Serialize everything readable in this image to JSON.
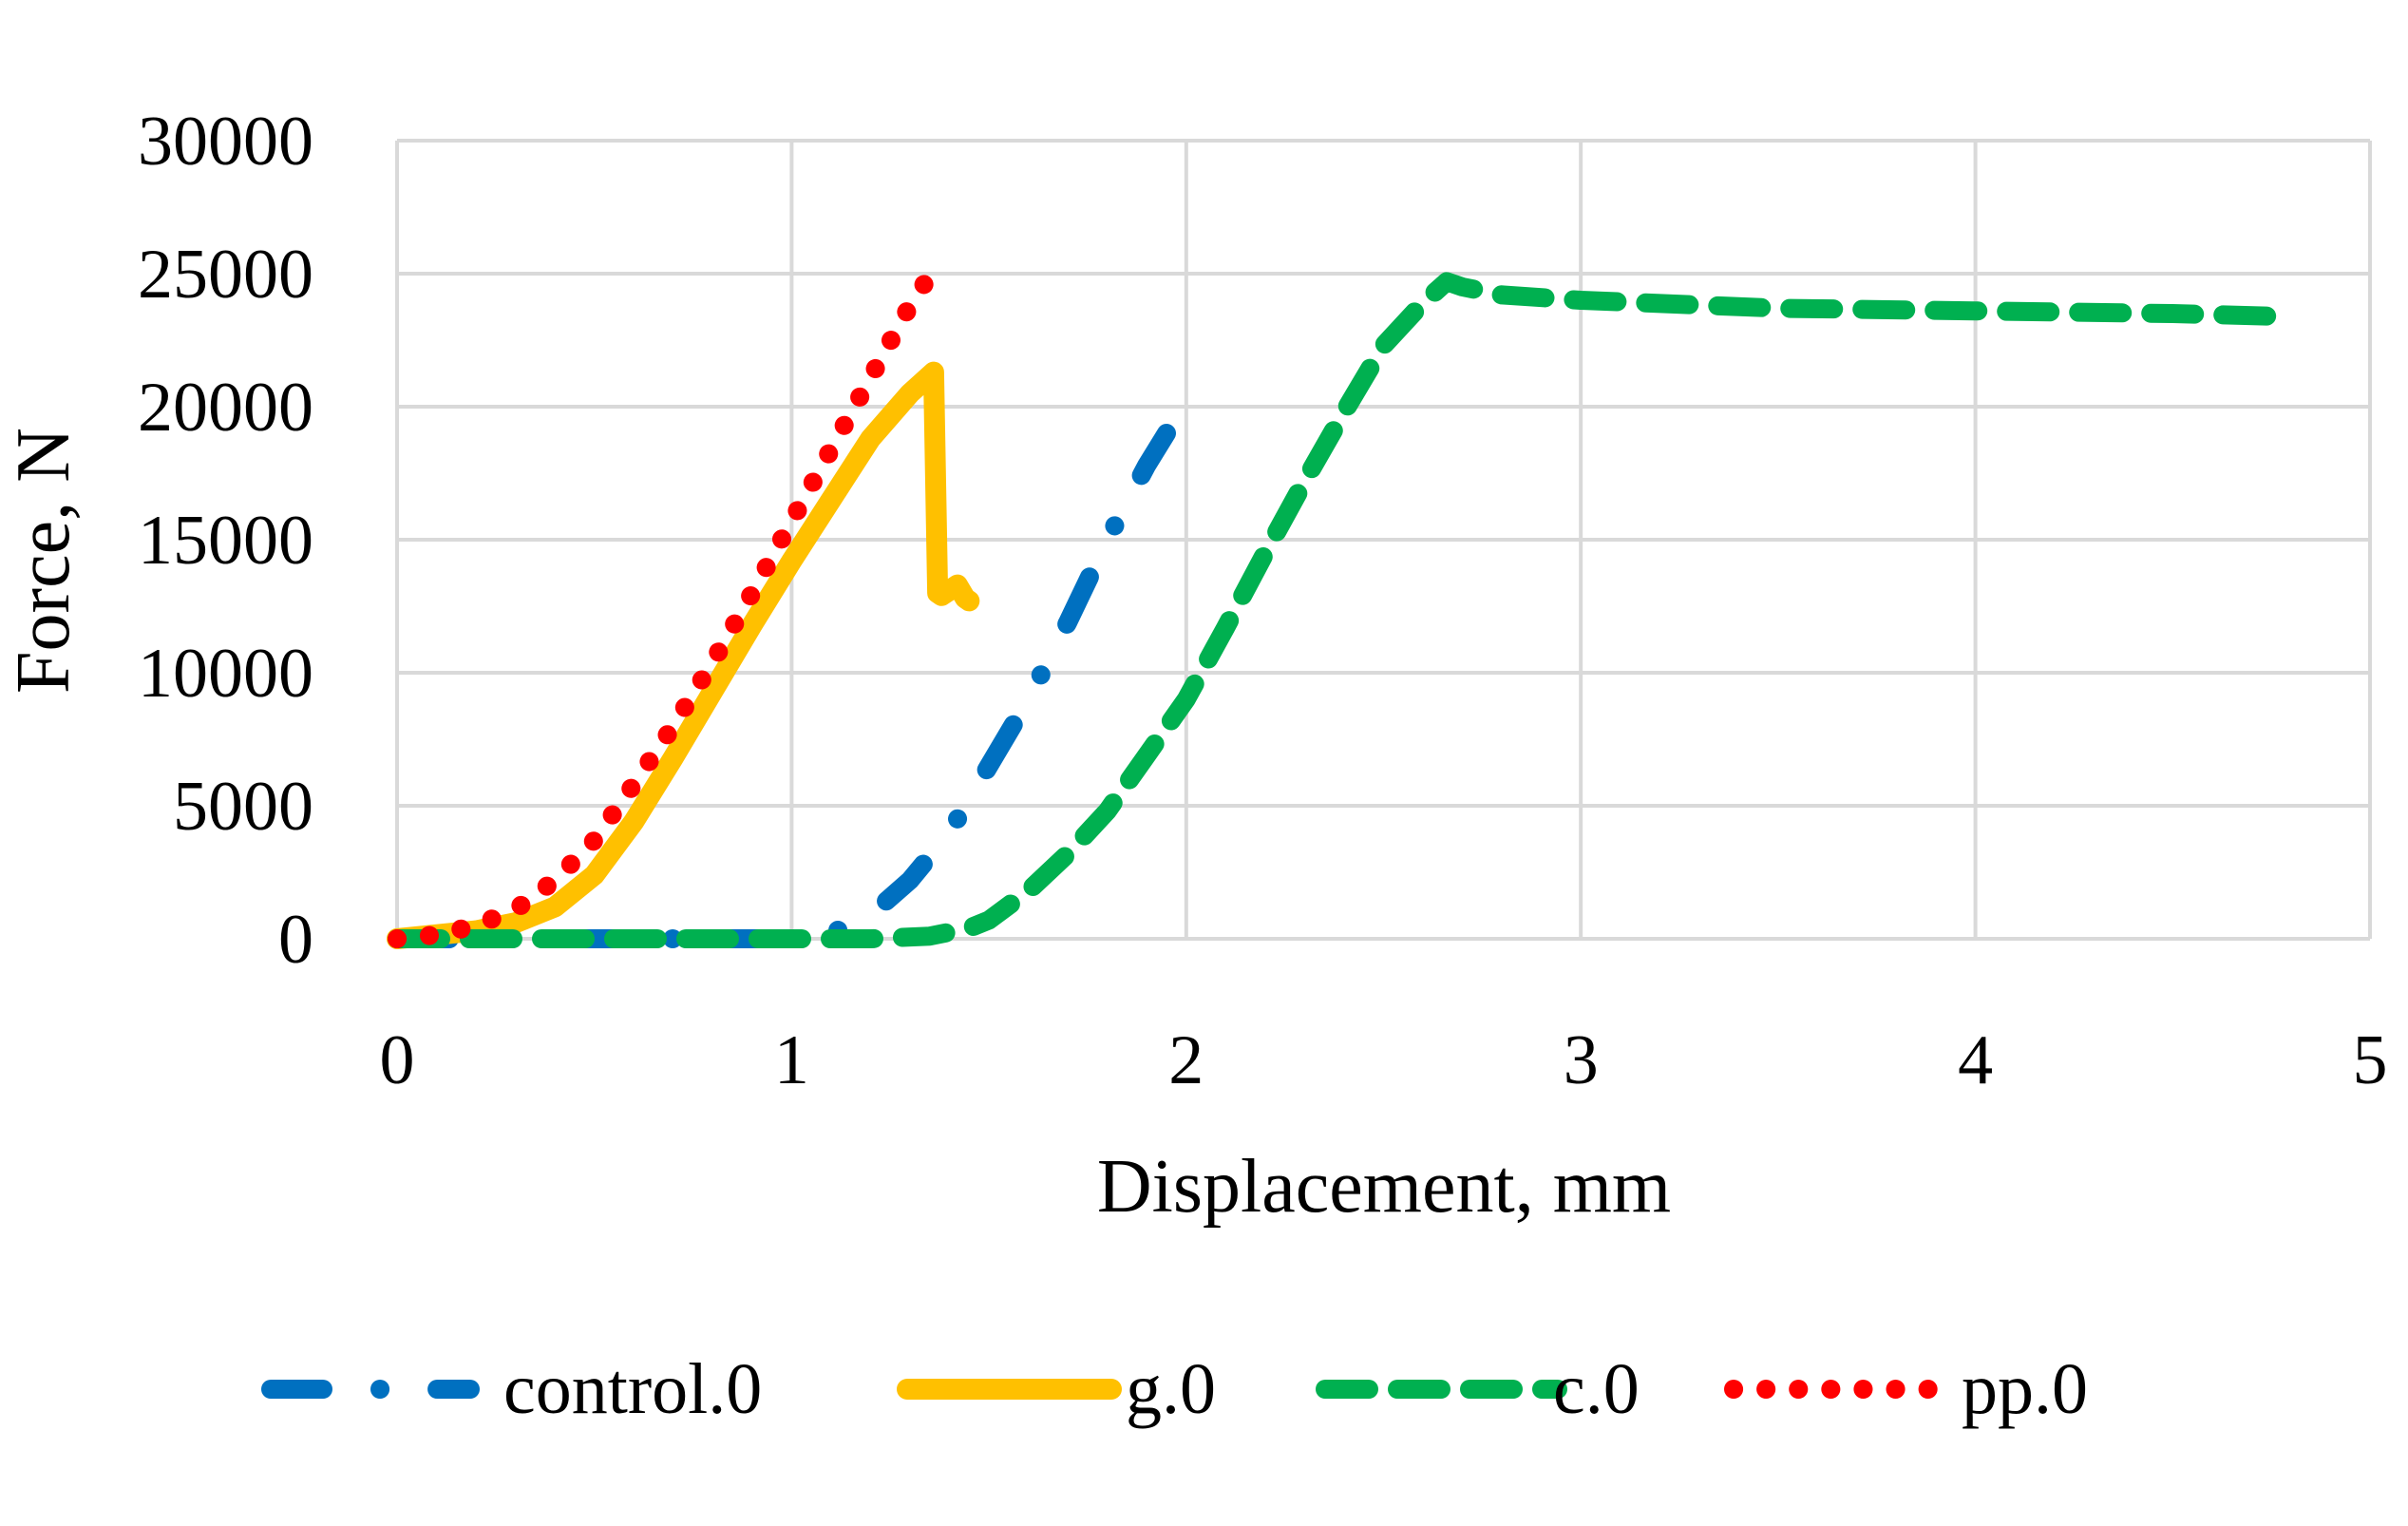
{
  "chart_data": {
    "type": "line",
    "title": "",
    "xlabel": "Displacement, mm",
    "ylabel": "Force, N",
    "xlim": [
      0,
      5
    ],
    "ylim": [
      0,
      30000
    ],
    "x_ticks": [
      "0",
      "1",
      "2",
      "3",
      "4",
      "5"
    ],
    "y_ticks": [
      "0",
      "5000",
      "10000",
      "15000",
      "20000",
      "25000",
      "30000"
    ],
    "grid": true,
    "legend_position": "bottom",
    "series": [
      {
        "name": "control.0",
        "color": "#0070C0",
        "style": "dash-dot",
        "x": [
          0,
          0.5,
          1.0,
          1.1,
          1.2,
          1.3,
          1.4,
          1.5,
          1.6,
          1.7,
          1.8,
          1.9,
          1.95
        ],
        "y": [
          0,
          0,
          0,
          200,
          900,
          2200,
          4000,
          6500,
          9000,
          11900,
          15000,
          17800,
          19000
        ]
      },
      {
        "name": "g.0",
        "color": "#FFC000",
        "style": "solid",
        "x": [
          0,
          0.2,
          0.3,
          0.4,
          0.5,
          0.6,
          0.7,
          0.8,
          0.9,
          1.0,
          1.1,
          1.2,
          1.3,
          1.36,
          1.37,
          1.38,
          1.4,
          1.42,
          1.44,
          1.45
        ],
        "y": [
          0,
          300,
          600,
          1200,
          2400,
          4400,
          6800,
          9300,
          11800,
          14200,
          16500,
          18800,
          20500,
          21300,
          13000,
          12900,
          13100,
          13300,
          12800,
          12700
        ]
      },
      {
        "name": "c.0",
        "color": "#00B050",
        "style": "dash",
        "x": [
          0,
          0.5,
          1.0,
          1.2,
          1.35,
          1.45,
          1.5,
          1.6,
          1.7,
          1.8,
          1.9,
          2.0,
          2.1,
          2.2,
          2.3,
          2.4,
          2.5,
          2.6,
          2.66,
          2.7,
          2.8,
          3.0,
          3.5,
          4.0,
          4.5,
          4.75
        ],
        "y": [
          0,
          0,
          0,
          0,
          100,
          400,
          700,
          1800,
          3200,
          4800,
          6900,
          9000,
          11700,
          14500,
          17200,
          19800,
          22300,
          23900,
          24700,
          24500,
          24200,
          24000,
          23700,
          23600,
          23500,
          23400
        ]
      },
      {
        "name": "pp.0",
        "color": "#FF0000",
        "style": "dot",
        "x": [
          0,
          0.1,
          0.2,
          0.3,
          0.4,
          0.5,
          0.6,
          0.7,
          0.8,
          0.9,
          1.0,
          1.1,
          1.2,
          1.3,
          1.34
        ],
        "y": [
          0,
          150,
          500,
          1100,
          2200,
          3700,
          5800,
          8000,
          10400,
          13000,
          15700,
          18400,
          21100,
          23800,
          24700
        ]
      }
    ]
  }
}
